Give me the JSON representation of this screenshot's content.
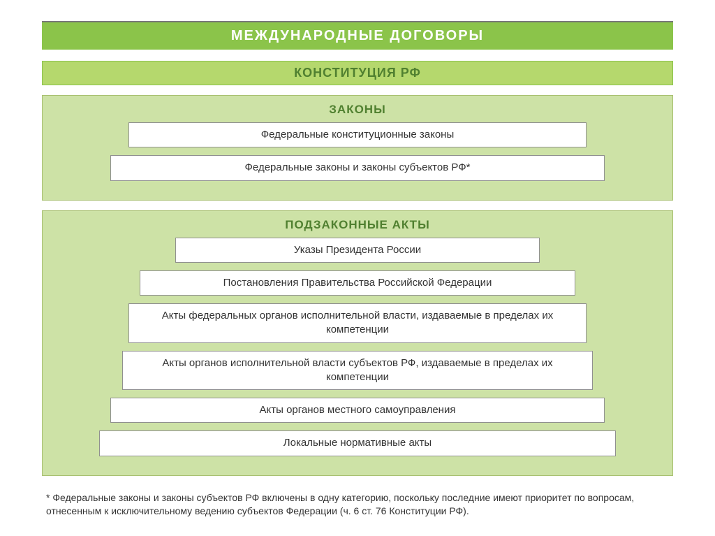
{
  "colors": {
    "header_bg": "#8bc44a",
    "header_text": "#ffffff",
    "constitution_bg": "#b5d86d",
    "constitution_border": "#8bc44a",
    "constitution_text": "#508030",
    "section_bg": "#cde2a6",
    "section_border": "#a8c070",
    "section_title_text": "#508030",
    "item_bg": "#ffffff",
    "item_border": "#909090",
    "item_text": "#333333",
    "footnote_text": "#333333",
    "top_rule": "#787878"
  },
  "typography": {
    "header_fontsize": 20,
    "constitution_fontsize": 18,
    "section_title_fontsize": 17,
    "item_fontsize": 15,
    "footnote_fontsize": 14,
    "font_family": "Arial"
  },
  "header": {
    "title": "МЕЖДУНАРОДНЫЕ  ДОГОВОРЫ"
  },
  "constitution": {
    "title": "КОНСТИТУЦИЯ РФ"
  },
  "laws": {
    "title": "ЗАКОНЫ",
    "items": [
      {
        "text": "Федеральные конституционные законы",
        "width_pct": 78
      },
      {
        "text": "Федеральные законы и законы субъектов РФ*",
        "width_pct": 84
      }
    ]
  },
  "sublaws": {
    "title": "ПОДЗАКОННЫЕ АКТЫ",
    "items": [
      {
        "text": "Указы Президента России",
        "width_pct": 62
      },
      {
        "text": "Постановления Правительства Российской Федерации",
        "width_pct": 74
      },
      {
        "text": "Акты федеральных органов исполнительной власти, издаваемые в пределах их компетенции",
        "width_pct": 78
      },
      {
        "text": "Акты органов исполнительной власти субъектов РФ, издаваемые в пределах их компетенции",
        "width_pct": 80
      },
      {
        "text": "Акты органов местного самоуправления",
        "width_pct": 84
      },
      {
        "text": "Локальные нормативные акты",
        "width_pct": 88
      }
    ]
  },
  "footnote": {
    "text": "* Федеральные законы и законы субъектов РФ включены в одну категорию, поскольку последние имеют приоритет по вопросам, отнесенным к исключительному ведению субъектов Федерации (ч. 6 ст. 76 Конституции РФ)."
  }
}
